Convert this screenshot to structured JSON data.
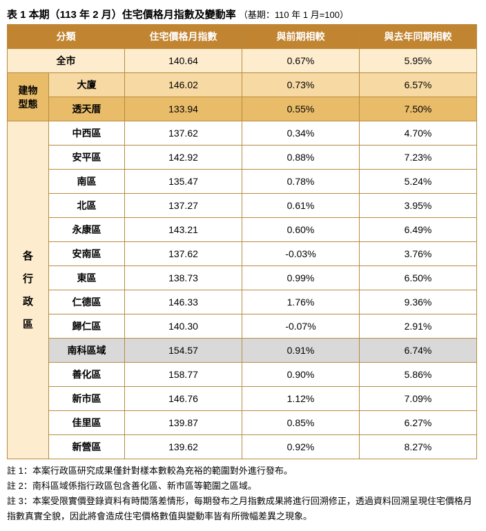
{
  "title_main": "表 1 本期（113 年 2 月）住宅價格月指數及變動率",
  "title_base": "（基期：110 年 1 月=100）",
  "headers": {
    "category": "分類",
    "index": "住宅價格月指數",
    "prev": "與前期相較",
    "yoy": "與去年同期相較"
  },
  "city_row": {
    "label": "全市",
    "index": "140.64",
    "prev": "0.67%",
    "yoy": "5.95%"
  },
  "btype_label_1": "建物",
  "btype_label_2": "型態",
  "btype_rows": [
    {
      "label": "大廈",
      "index": "146.02",
      "prev": "0.73%",
      "yoy": "6.57%"
    },
    {
      "label": "透天厝",
      "index": "133.94",
      "prev": "0.55%",
      "yoy": "7.50%"
    }
  ],
  "district_label": "各\n行\n政\n區",
  "district_chars": [
    "各",
    "行",
    "政",
    "區"
  ],
  "district_rows": [
    {
      "label": "中西區",
      "index": "137.62",
      "prev": "0.34%",
      "yoy": "4.70%",
      "shade": "white"
    },
    {
      "label": "安平區",
      "index": "142.92",
      "prev": "0.88%",
      "yoy": "7.23%",
      "shade": "white"
    },
    {
      "label": "南區",
      "index": "135.47",
      "prev": "0.78%",
      "yoy": "5.24%",
      "shade": "white"
    },
    {
      "label": "北區",
      "index": "137.27",
      "prev": "0.61%",
      "yoy": "3.95%",
      "shade": "white"
    },
    {
      "label": "永康區",
      "index": "143.21",
      "prev": "0.60%",
      "yoy": "6.49%",
      "shade": "white"
    },
    {
      "label": "安南區",
      "index": "137.62",
      "prev": "-0.03%",
      "yoy": "3.76%",
      "shade": "white"
    },
    {
      "label": "東區",
      "index": "138.73",
      "prev": "0.99%",
      "yoy": "6.50%",
      "shade": "white"
    },
    {
      "label": "仁德區",
      "index": "146.33",
      "prev": "1.76%",
      "yoy": "9.36%",
      "shade": "white"
    },
    {
      "label": "歸仁區",
      "index": "140.30",
      "prev": "-0.07%",
      "yoy": "2.91%",
      "shade": "white"
    },
    {
      "label": "南科區域",
      "index": "154.57",
      "prev": "0.91%",
      "yoy": "6.74%",
      "shade": "grey"
    },
    {
      "label": "善化區",
      "index": "158.77",
      "prev": "0.90%",
      "yoy": "5.86%",
      "shade": "white"
    },
    {
      "label": "新市區",
      "index": "146.76",
      "prev": "1.12%",
      "yoy": "7.09%",
      "shade": "white"
    },
    {
      "label": "佳里區",
      "index": "139.87",
      "prev": "0.85%",
      "yoy": "6.27%",
      "shade": "white"
    },
    {
      "label": "新營區",
      "index": "139.62",
      "prev": "0.92%",
      "yoy": "8.27%",
      "shade": "white"
    }
  ],
  "notes": [
    "註 1：本案行政區研究成果僅針對樣本數較為充裕的範圍對外進行發布。",
    "註 2：南科區域係指行政區包含善化區、新市區等範圍之區域。",
    "註 3：本案受限實價登錄資料有時間落差情形，每期發布之月指數成果將進行回溯修正，透過資料回溯呈現住宅價格月指數真實全貌，因此將會造成住宅價格數值與變動率皆有所微幅差異之現象。"
  ],
  "style": {
    "header_bg": "#c18430",
    "header_fg": "#ffffff",
    "border": "#b88a3d",
    "band_light": "#fdeccd",
    "band_mid": "#f7d9a3",
    "band_dark": "#e9bc69",
    "band_grey": "#d9d9d9",
    "title_fontsize": 15,
    "cell_fontsize": 14,
    "notes_fontsize": 13
  }
}
